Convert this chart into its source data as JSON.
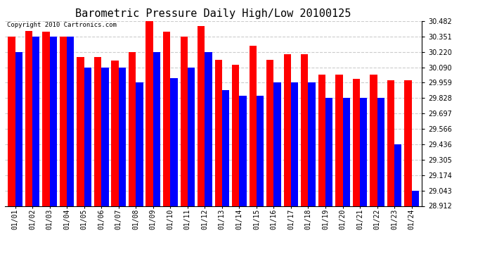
{
  "title": "Barometric Pressure Daily High/Low 20100125",
  "copyright_text": "Copyright 2010 Cartronics.com",
  "dates": [
    "01/01",
    "01/02",
    "01/03",
    "01/04",
    "01/05",
    "01/06",
    "01/07",
    "01/08",
    "01/09",
    "01/10",
    "01/11",
    "01/12",
    "01/13",
    "01/14",
    "01/15",
    "01/16",
    "01/17",
    "01/18",
    "01/19",
    "01/20",
    "01/21",
    "01/22",
    "01/23",
    "01/24"
  ],
  "highs": [
    30.351,
    30.4,
    30.39,
    30.351,
    30.175,
    30.175,
    30.15,
    30.22,
    30.482,
    30.39,
    30.351,
    30.44,
    30.155,
    30.11,
    30.27,
    30.155,
    30.2,
    30.2,
    30.025,
    30.025,
    29.99,
    30.025,
    29.98,
    29.98
  ],
  "lows": [
    30.22,
    30.351,
    30.351,
    30.351,
    30.09,
    30.09,
    30.09,
    29.96,
    30.22,
    30.0,
    30.09,
    30.22,
    29.895,
    29.85,
    29.85,
    29.96,
    29.96,
    29.96,
    29.828,
    29.828,
    29.828,
    29.828,
    29.436,
    29.043
  ],
  "ymin": 28.912,
  "ymax": 30.482,
  "yticks": [
    28.912,
    29.043,
    29.174,
    29.305,
    29.436,
    29.566,
    29.697,
    29.828,
    29.959,
    30.09,
    30.22,
    30.351,
    30.482
  ],
  "high_color": "#ff0000",
  "low_color": "#0000ff",
  "bg_color": "#ffffff",
  "grid_color": "#cccccc",
  "title_fontsize": 11,
  "tick_fontsize": 7,
  "bar_width": 0.42
}
